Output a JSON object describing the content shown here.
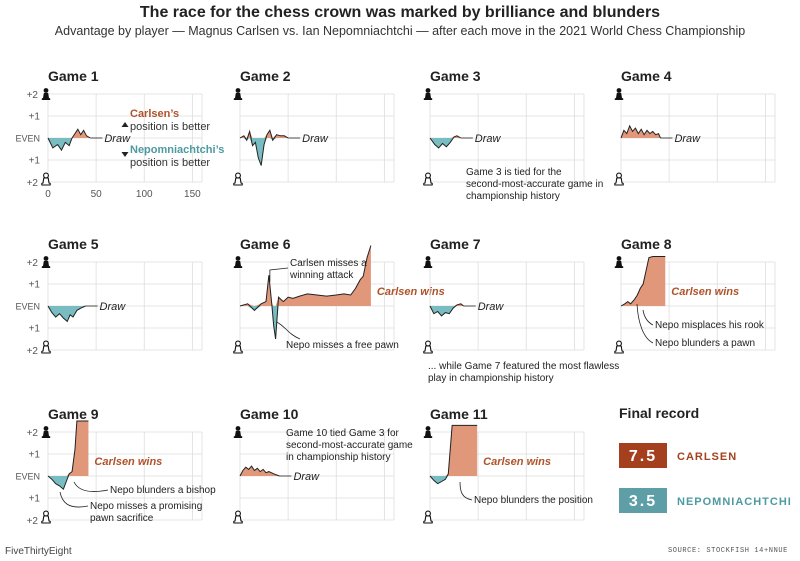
{
  "header": {
    "title": "The race for the chess crown was marked by brilliance and blunders",
    "subtitle": "Advantage by player — Magnus Carlsen vs. Ian Nepomniachtchi — after each move in the 2021 World Chess Championship"
  },
  "footer": {
    "brand": "FiveThirtyEight",
    "source": "SOURCE: STOCKFISH 14+NNUE"
  },
  "colors": {
    "carlsen": "#e0977a",
    "carlsen_text": "#b0532a",
    "carlsen_badge": "#a5401e",
    "nepo": "#79bcc2",
    "nepo_text": "#4d9aa1",
    "nepo_badge": "#5e9ea6",
    "grid": "#dddddd"
  },
  "icons": {
    "carlsen_piece": "black-pawn-icon",
    "nepo_piece": "white-pawn-icon"
  },
  "chart_data": {
    "type": "area",
    "ylabels": [
      "+2",
      "+1",
      "EVEN",
      "+1",
      "+2"
    ],
    "xticks": [
      0,
      50,
      100,
      150
    ],
    "ylim": [
      -2,
      2
    ],
    "xlim": [
      0,
      160
    ],
    "legend": {
      "carlsen": [
        "Carlsen’s",
        "position is better"
      ],
      "nepo": [
        "Nepomniachtchi’s",
        "position is better"
      ]
    },
    "games": [
      {
        "title": "Game 1",
        "result": "Draw",
        "points": [
          [
            0,
            0
          ],
          [
            5,
            -0.45
          ],
          [
            10,
            -0.3
          ],
          [
            14,
            -0.55
          ],
          [
            18,
            -0.2
          ],
          [
            22,
            -0.35
          ],
          [
            25,
            0
          ],
          [
            28,
            0.2
          ],
          [
            31,
            0.4
          ],
          [
            34,
            0.15
          ],
          [
            37,
            0.35
          ],
          [
            40,
            0.1
          ],
          [
            44,
            0
          ]
        ],
        "notes": []
      },
      {
        "title": "Game 2",
        "result": "Draw",
        "points": [
          [
            0,
            0
          ],
          [
            4,
            0.1
          ],
          [
            7,
            -0.1
          ],
          [
            10,
            0.3
          ],
          [
            13,
            -0.35
          ],
          [
            16,
            -0.2
          ],
          [
            19,
            -0.9
          ],
          [
            22,
            -1.25
          ],
          [
            25,
            -0.3
          ],
          [
            28,
            0.15
          ],
          [
            31,
            0.35
          ],
          [
            34,
            -0.1
          ],
          [
            38,
            0.15
          ],
          [
            42,
            0.1
          ],
          [
            46,
            0.1
          ],
          [
            50,
            0
          ]
        ],
        "notes": []
      },
      {
        "title": "Game 3",
        "result": "Draw",
        "points": [
          [
            0,
            0
          ],
          [
            5,
            -0.3
          ],
          [
            9,
            -0.45
          ],
          [
            13,
            -0.25
          ],
          [
            17,
            -0.4
          ],
          [
            21,
            -0.2
          ],
          [
            25,
            0.05
          ],
          [
            28,
            0.1
          ],
          [
            32,
            0
          ]
        ],
        "notes": [
          {
            "lines": [
              "Game 3 is tied for the",
              "second-most-accurate game in",
              "championship history"
            ]
          }
        ]
      },
      {
        "title": "Game 4",
        "result": "Draw",
        "points": [
          [
            0,
            0
          ],
          [
            3,
            0.35
          ],
          [
            6,
            0.2
          ],
          [
            9,
            0.55
          ],
          [
            12,
            0.3
          ],
          [
            15,
            0.45
          ],
          [
            18,
            0.2
          ],
          [
            21,
            0.4
          ],
          [
            24,
            0.15
          ],
          [
            27,
            0.35
          ],
          [
            30,
            0.2
          ],
          [
            33,
            0.3
          ],
          [
            36,
            0.15
          ],
          [
            39,
            0.2
          ],
          [
            41,
            0
          ]
        ],
        "notes": []
      },
      {
        "title": "Game 5",
        "result": "Draw",
        "points": [
          [
            0,
            0
          ],
          [
            4,
            -0.3
          ],
          [
            8,
            -0.5
          ],
          [
            12,
            -0.35
          ],
          [
            16,
            -0.55
          ],
          [
            20,
            -0.7
          ],
          [
            23,
            -0.4
          ],
          [
            26,
            -0.5
          ],
          [
            30,
            -0.2
          ],
          [
            34,
            -0.1
          ],
          [
            39,
            0
          ]
        ],
        "notes": []
      },
      {
        "title": "Game 6",
        "result": "Carlsen wins",
        "points": [
          [
            0,
            0
          ],
          [
            8,
            0.1
          ],
          [
            15,
            -0.2
          ],
          [
            22,
            0.1
          ],
          [
            27,
            0.2
          ],
          [
            30,
            1.4
          ],
          [
            33,
            0.1
          ],
          [
            35,
            -0.9
          ],
          [
            37,
            -1.5
          ],
          [
            40,
            0.4
          ],
          [
            45,
            0.2
          ],
          [
            50,
            0.4
          ],
          [
            55,
            0.35
          ],
          [
            62,
            0.45
          ],
          [
            70,
            0.55
          ],
          [
            80,
            0.5
          ],
          [
            90,
            0.45
          ],
          [
            100,
            0.5
          ],
          [
            108,
            0.55
          ],
          [
            115,
            0.5
          ],
          [
            120,
            0.8
          ],
          [
            125,
            1.2
          ],
          [
            128,
            1.35
          ],
          [
            132,
            2.2
          ],
          [
            136,
            2.75
          ]
        ],
        "notes": [
          {
            "lines": [
              "Carlsen misses a",
              "winning attack"
            ]
          },
          {
            "lines": [
              "Nepo misses a free pawn"
            ]
          }
        ]
      },
      {
        "title": "Game 7",
        "result": "Draw",
        "points": [
          [
            0,
            0
          ],
          [
            4,
            -0.35
          ],
          [
            8,
            -0.25
          ],
          [
            12,
            -0.45
          ],
          [
            16,
            -0.3
          ],
          [
            20,
            -0.35
          ],
          [
            24,
            -0.1
          ],
          [
            28,
            0.05
          ],
          [
            32,
            0.1
          ],
          [
            35,
            0
          ]
        ],
        "notes": [
          {
            "lines": [
              "... while Game 7 featured the most flawless",
              "play in championship history"
            ]
          }
        ]
      },
      {
        "title": "Game 8",
        "result": "Carlsen wins",
        "points": [
          [
            0,
            0
          ],
          [
            4,
            0.1
          ],
          [
            7,
            0.2
          ],
          [
            10,
            0.1
          ],
          [
            14,
            0.3
          ],
          [
            17,
            0.5
          ],
          [
            20,
            0.8
          ],
          [
            23,
            1.0
          ],
          [
            26,
            1.6
          ],
          [
            29,
            2.2
          ],
          [
            33,
            2.25
          ],
          [
            46,
            2.25
          ]
        ],
        "notes": [
          {
            "lines": [
              "Nepo misplaces his rook"
            ]
          },
          {
            "lines": [
              "Nepo blunders a pawn"
            ]
          }
        ]
      },
      {
        "title": "Game 9",
        "result": "Carlsen wins",
        "points": [
          [
            0,
            0
          ],
          [
            4,
            -0.15
          ],
          [
            8,
            -0.35
          ],
          [
            12,
            -0.45
          ],
          [
            16,
            -0.6
          ],
          [
            19,
            -0.25
          ],
          [
            22,
            0.1
          ],
          [
            25,
            0.2
          ],
          [
            28,
            1.2
          ],
          [
            30,
            2.5
          ],
          [
            42,
            2.5
          ]
        ],
        "notes": [
          {
            "lines": [
              "Nepo blunders a bishop"
            ]
          },
          {
            "lines": [
              "Nepo misses a promising",
              "pawn sacrifice"
            ]
          }
        ]
      },
      {
        "title": "Game 10",
        "result": "Draw",
        "points": [
          [
            0,
            0
          ],
          [
            3,
            0.25
          ],
          [
            6,
            0.4
          ],
          [
            9,
            0.3
          ],
          [
            12,
            0.45
          ],
          [
            15,
            0.25
          ],
          [
            18,
            0.35
          ],
          [
            21,
            0.2
          ],
          [
            24,
            0.3
          ],
          [
            27,
            0.15
          ],
          [
            30,
            0.2
          ],
          [
            35,
            0.1
          ],
          [
            41,
            0
          ]
        ],
        "notes": [
          {
            "lines": [
              "Game 10 tied Game 3 for",
              "second-most-accurate game",
              "in championship history"
            ]
          }
        ]
      },
      {
        "title": "Game 11",
        "result": "Carlsen wins",
        "points": [
          [
            0,
            0
          ],
          [
            4,
            -0.2
          ],
          [
            8,
            -0.35
          ],
          [
            12,
            -0.25
          ],
          [
            16,
            -0.15
          ],
          [
            19,
            0.1
          ],
          [
            23,
            2.3
          ],
          [
            49,
            2.3
          ]
        ],
        "notes": [
          {
            "lines": [
              "Nepo blunders the position"
            ]
          }
        ]
      }
    ],
    "final_record": {
      "title": "Final record",
      "rows": [
        {
          "score": "7.5",
          "name": "CARLSEN"
        },
        {
          "score": "3.5",
          "name": "NEPOMNIACHTCHI"
        }
      ]
    }
  }
}
